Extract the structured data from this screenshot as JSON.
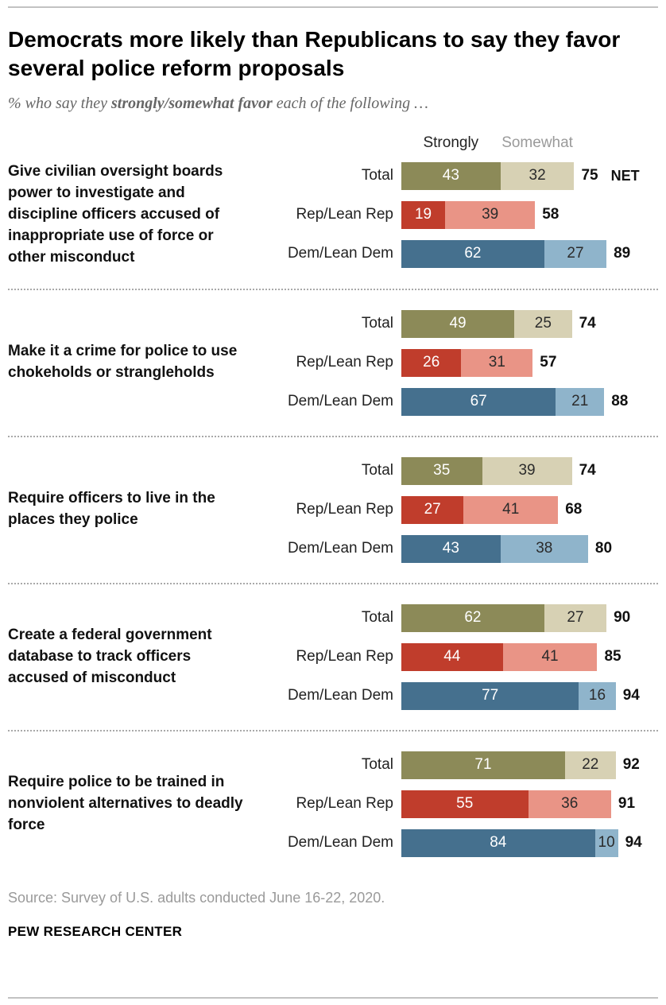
{
  "header": {
    "title": "Democrats more likely than Republicans to say they favor several police reform proposals",
    "subtitle_prefix": "% who say they ",
    "subtitle_bold": "strongly/somewhat favor",
    "subtitle_suffix": " each of the following …"
  },
  "legend": {
    "strongly": "Strongly",
    "somewhat": "Somewhat",
    "net_label": "NET"
  },
  "colors": {
    "rows": [
      {
        "strongly": "#8C8A58",
        "somewhat": "#D7D1B4"
      },
      {
        "strongly": "#C03D2C",
        "somewhat": "#E99486"
      },
      {
        "strongly": "#45708E",
        "somewhat": "#8FB4CB"
      }
    ],
    "strongly_text": "#ffffff",
    "somewhat_text": "#2b2b2b"
  },
  "chart_data": {
    "type": "bar",
    "subtype": "horizontal-stacked",
    "series_labels": [
      "Strongly",
      "Somewhat"
    ],
    "row_labels": [
      "Total",
      "Rep/Lean Rep",
      "Dem/Lean Dem"
    ],
    "xlim": [
      0,
      100
    ],
    "grid": false,
    "legend_position": "top",
    "groups": [
      {
        "question": "Give civilian oversight boards power to investigate and discipline officers accused of inappropriate use of force or other misconduct",
        "rows": [
          {
            "label": "Total",
            "strongly": 43,
            "somewhat": 32,
            "net": 75
          },
          {
            "label": "Rep/Lean Rep",
            "strongly": 19,
            "somewhat": 39,
            "net": 58
          },
          {
            "label": "Dem/Lean Dem",
            "strongly": 62,
            "somewhat": 27,
            "net": 89
          }
        ]
      },
      {
        "question": "Make it a crime for police to use chokeholds or strangleholds",
        "rows": [
          {
            "label": "Total",
            "strongly": 49,
            "somewhat": 25,
            "net": 74
          },
          {
            "label": "Rep/Lean Rep",
            "strongly": 26,
            "somewhat": 31,
            "net": 57
          },
          {
            "label": "Dem/Lean Dem",
            "strongly": 67,
            "somewhat": 21,
            "net": 88
          }
        ]
      },
      {
        "question": "Require officers to live in the places they police",
        "rows": [
          {
            "label": "Total",
            "strongly": 35,
            "somewhat": 39,
            "net": 74
          },
          {
            "label": "Rep/Lean Rep",
            "strongly": 27,
            "somewhat": 41,
            "net": 68
          },
          {
            "label": "Dem/Lean Dem",
            "strongly": 43,
            "somewhat": 38,
            "net": 80
          }
        ]
      },
      {
        "question": "Create a federal government database to track officers accused of misconduct",
        "rows": [
          {
            "label": "Total",
            "strongly": 62,
            "somewhat": 27,
            "net": 90
          },
          {
            "label": "Rep/Lean Rep",
            "strongly": 44,
            "somewhat": 41,
            "net": 85
          },
          {
            "label": "Dem/Lean Dem",
            "strongly": 77,
            "somewhat": 16,
            "net": 94
          }
        ]
      },
      {
        "question": "Require police to be trained in nonviolent alternatives to deadly force",
        "rows": [
          {
            "label": "Total",
            "strongly": 71,
            "somewhat": 22,
            "net": 92
          },
          {
            "label": "Rep/Lean Rep",
            "strongly": 55,
            "somewhat": 36,
            "net": 91
          },
          {
            "label": "Dem/Lean Dem",
            "strongly": 84,
            "somewhat": 10,
            "net": 94
          }
        ]
      }
    ]
  },
  "footer": {
    "source": "Source: Survey of U.S. adults conducted June 16-22, 2020.",
    "brand": "PEW RESEARCH CENTER"
  }
}
